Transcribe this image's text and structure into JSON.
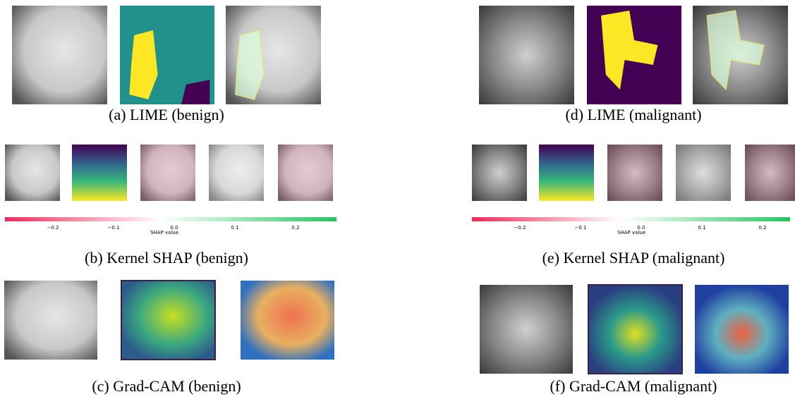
{
  "panels": [
    {
      "caption": "(a) LIME (benign)"
    },
    {
      "caption": "(b) Kernel SHAP (benign)",
      "colorbar": {
        "ticks": [
          "−0.2",
          "−0.1",
          "0.0",
          "0.1",
          "0.2"
        ],
        "label": "SHAP value"
      }
    },
    {
      "caption": "(c) Grad-CAM (benign)"
    },
    {
      "caption": "(d) LIME (malignant)"
    },
    {
      "caption": "(e) Kernel SHAP (malignant)",
      "colorbar": {
        "ticks": [
          "−0.2",
          "−0.1",
          "0.0",
          "0.1",
          "0.2"
        ],
        "label": "SHAP value"
      }
    },
    {
      "caption": "(f) Grad-CAM (malignant)"
    }
  ]
}
